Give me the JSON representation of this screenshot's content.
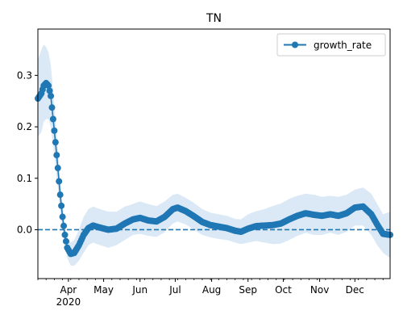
{
  "chart_data": {
    "type": "line",
    "title": "TN",
    "xlabel": "",
    "ylabel": "",
    "x_range": [
      "2020-03-06",
      "2020-12-31"
    ],
    "ylim": [
      -0.095,
      0.39
    ],
    "y_ticks": [
      0.0,
      0.1,
      0.2,
      0.3
    ],
    "y_tick_labels": [
      "0.0",
      "0.1",
      "0.2",
      "0.3"
    ],
    "x_ticks": [
      {
        "date": "2020-04-01",
        "label": "Apr",
        "sublabel": "2020"
      },
      {
        "date": "2020-05-01",
        "label": "May"
      },
      {
        "date": "2020-06-01",
        "label": "Jun"
      },
      {
        "date": "2020-07-01",
        "label": "Jul"
      },
      {
        "date": "2020-08-01",
        "label": "Aug"
      },
      {
        "date": "2020-09-01",
        "label": "Sep"
      },
      {
        "date": "2020-10-01",
        "label": "Oct"
      },
      {
        "date": "2020-11-01",
        "label": "Nov"
      },
      {
        "date": "2020-12-01",
        "label": "Dec"
      }
    ],
    "reference_line": {
      "y": 0.0,
      "style": "dashed",
      "color": "#1f77b4"
    },
    "legend": {
      "placement": "top-right",
      "entries": [
        "growth_rate"
      ]
    },
    "grid": false,
    "colors": {
      "line": "#1f77b4",
      "band": "#dbe8f6"
    },
    "series": [
      {
        "name": "growth_rate",
        "marker": "circle",
        "points": [
          {
            "date": "2020-03-06",
            "y": 0.255,
            "lo": 0.18,
            "hi": 0.33
          },
          {
            "date": "2020-03-09",
            "y": 0.265,
            "lo": 0.19,
            "hi": 0.35
          },
          {
            "date": "2020-03-11",
            "y": 0.28,
            "lo": 0.21,
            "hi": 0.36
          },
          {
            "date": "2020-03-13",
            "y": 0.285,
            "lo": 0.215,
            "hi": 0.355
          },
          {
            "date": "2020-03-15",
            "y": 0.28,
            "lo": 0.215,
            "hi": 0.345
          },
          {
            "date": "2020-03-17",
            "y": 0.26,
            "lo": 0.2,
            "hi": 0.32
          },
          {
            "date": "2020-03-19",
            "y": 0.215,
            "lo": 0.165,
            "hi": 0.27
          },
          {
            "date": "2020-03-21",
            "y": 0.17,
            "lo": 0.125,
            "hi": 0.215
          },
          {
            "date": "2020-03-23",
            "y": 0.12,
            "lo": 0.08,
            "hi": 0.16
          },
          {
            "date": "2020-03-25",
            "y": 0.068,
            "lo": 0.035,
            "hi": 0.1
          },
          {
            "date": "2020-03-27",
            "y": 0.025,
            "lo": 0.0,
            "hi": 0.05
          },
          {
            "date": "2020-03-29",
            "y": -0.01,
            "lo": -0.03,
            "hi": 0.01
          },
          {
            "date": "2020-03-31",
            "y": -0.035,
            "lo": -0.055,
            "hi": -0.015
          },
          {
            "date": "2020-04-03",
            "y": -0.047,
            "lo": -0.07,
            "hi": -0.025
          },
          {
            "date": "2020-04-06",
            "y": -0.045,
            "lo": -0.07,
            "hi": -0.02
          },
          {
            "date": "2020-04-10",
            "y": -0.03,
            "lo": -0.06,
            "hi": 0.0
          },
          {
            "date": "2020-04-14",
            "y": -0.01,
            "lo": -0.045,
            "hi": 0.025
          },
          {
            "date": "2020-04-18",
            "y": 0.003,
            "lo": -0.03,
            "hi": 0.04
          },
          {
            "date": "2020-04-22",
            "y": 0.008,
            "lo": -0.025,
            "hi": 0.045
          },
          {
            "date": "2020-04-28",
            "y": 0.004,
            "lo": -0.03,
            "hi": 0.04
          },
          {
            "date": "2020-05-05",
            "y": 0.0,
            "lo": -0.035,
            "hi": 0.035
          },
          {
            "date": "2020-05-12",
            "y": 0.002,
            "lo": -0.03,
            "hi": 0.035
          },
          {
            "date": "2020-05-19",
            "y": 0.012,
            "lo": -0.02,
            "hi": 0.045
          },
          {
            "date": "2020-05-26",
            "y": 0.02,
            "lo": -0.01,
            "hi": 0.05
          },
          {
            "date": "2020-06-01",
            "y": 0.023,
            "lo": -0.008,
            "hi": 0.055
          },
          {
            "date": "2020-06-08",
            "y": 0.018,
            "lo": -0.012,
            "hi": 0.05
          },
          {
            "date": "2020-06-15",
            "y": 0.016,
            "lo": -0.014,
            "hi": 0.046
          },
          {
            "date": "2020-06-22",
            "y": 0.025,
            "lo": -0.005,
            "hi": 0.055
          },
          {
            "date": "2020-06-29",
            "y": 0.04,
            "lo": 0.012,
            "hi": 0.068
          },
          {
            "date": "2020-07-03",
            "y": 0.043,
            "lo": 0.016,
            "hi": 0.07
          },
          {
            "date": "2020-07-10",
            "y": 0.036,
            "lo": 0.01,
            "hi": 0.062
          },
          {
            "date": "2020-07-17",
            "y": 0.026,
            "lo": 0.0,
            "hi": 0.052
          },
          {
            "date": "2020-07-24",
            "y": 0.015,
            "lo": -0.01,
            "hi": 0.04
          },
          {
            "date": "2020-07-31",
            "y": 0.009,
            "lo": -0.015,
            "hi": 0.033
          },
          {
            "date": "2020-08-07",
            "y": 0.006,
            "lo": -0.018,
            "hi": 0.03
          },
          {
            "date": "2020-08-14",
            "y": 0.003,
            "lo": -0.02,
            "hi": 0.027
          },
          {
            "date": "2020-08-21",
            "y": -0.002,
            "lo": -0.025,
            "hi": 0.021
          },
          {
            "date": "2020-08-26",
            "y": -0.004,
            "lo": -0.028,
            "hi": 0.02
          },
          {
            "date": "2020-09-01",
            "y": 0.002,
            "lo": -0.025,
            "hi": 0.03
          },
          {
            "date": "2020-09-08",
            "y": 0.007,
            "lo": -0.022,
            "hi": 0.036
          },
          {
            "date": "2020-09-15",
            "y": 0.008,
            "lo": -0.025,
            "hi": 0.04
          },
          {
            "date": "2020-09-22",
            "y": 0.009,
            "lo": -0.028,
            "hi": 0.046
          },
          {
            "date": "2020-09-29",
            "y": 0.012,
            "lo": -0.027,
            "hi": 0.051
          },
          {
            "date": "2020-10-06",
            "y": 0.02,
            "lo": -0.02,
            "hi": 0.06
          },
          {
            "date": "2020-10-13",
            "y": 0.027,
            "lo": -0.012,
            "hi": 0.066
          },
          {
            "date": "2020-10-20",
            "y": 0.032,
            "lo": -0.006,
            "hi": 0.07
          },
          {
            "date": "2020-10-27",
            "y": 0.029,
            "lo": -0.01,
            "hi": 0.068
          },
          {
            "date": "2020-11-03",
            "y": 0.027,
            "lo": -0.01,
            "hi": 0.064
          },
          {
            "date": "2020-11-10",
            "y": 0.03,
            "lo": -0.006,
            "hi": 0.066
          },
          {
            "date": "2020-11-17",
            "y": 0.027,
            "lo": -0.01,
            "hi": 0.064
          },
          {
            "date": "2020-11-24",
            "y": 0.032,
            "lo": -0.004,
            "hi": 0.068
          },
          {
            "date": "2020-12-01",
            "y": 0.043,
            "lo": 0.008,
            "hi": 0.078
          },
          {
            "date": "2020-12-08",
            "y": 0.045,
            "lo": 0.008,
            "hi": 0.082
          },
          {
            "date": "2020-12-15",
            "y": 0.03,
            "lo": -0.01,
            "hi": 0.07
          },
          {
            "date": "2020-12-20",
            "y": 0.01,
            "lo": -0.03,
            "hi": 0.05
          },
          {
            "date": "2020-12-25",
            "y": -0.008,
            "lo": -0.045,
            "hi": 0.03
          },
          {
            "date": "2020-12-31",
            "y": -0.01,
            "lo": -0.055,
            "hi": 0.035
          }
        ]
      }
    ]
  }
}
